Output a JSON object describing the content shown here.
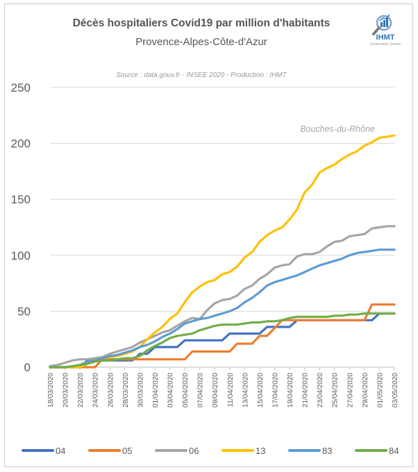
{
  "header": {
    "title": "Décès hospitaliers Covid19 par million d'habitants",
    "subtitle": "Provence-Alpes-Côte-d'Azur",
    "source": "Source : data.gouv.fr - INSEE 2020 - Production : IHMT",
    "logo_text": "IHMT",
    "logo_tagline": "Understand, Decide"
  },
  "colors": {
    "04": "#4472c4",
    "05": "#ed7d31",
    "06": "#a5a5a5",
    "13": "#ffc000",
    "83": "#5b9bd5",
    "84": "#70ad47",
    "grid": "#d9d9d9",
    "annotation": "#a5a5a5"
  },
  "chart_data": {
    "type": "line",
    "title": "Décès hospitaliers Covid19 par million d'habitants",
    "subtitle": "Provence-Alpes-Côte-d'Azur",
    "xlabel": "",
    "ylabel": "",
    "ylim": [
      0,
      250
    ],
    "yticks": [
      0,
      50,
      100,
      150,
      200,
      250
    ],
    "grid": true,
    "legend_position": "bottom",
    "annotation": {
      "text": "Bouches-du-Rhône",
      "series": "13"
    },
    "x": [
      "18/03/2020",
      "19/03/2020",
      "20/03/2020",
      "21/03/2020",
      "22/03/2020",
      "23/03/2020",
      "24/03/2020",
      "25/03/2020",
      "26/03/2020",
      "27/03/2020",
      "28/03/2020",
      "29/03/2020",
      "30/03/2020",
      "31/03/2020",
      "01/04/2020",
      "02/04/2020",
      "03/04/2020",
      "04/04/2020",
      "05/04/2020",
      "06/04/2020",
      "07/04/2020",
      "08/04/2020",
      "09/04/2020",
      "10/04/2020",
      "11/04/2020",
      "12/04/2020",
      "13/04/2020",
      "14/04/2020",
      "15/04/2020",
      "16/04/2020",
      "17/04/2020",
      "18/04/2020",
      "19/04/2020",
      "20/04/2020",
      "21/04/2020",
      "22/04/2020",
      "23/04/2020",
      "24/04/2020",
      "25/04/2020",
      "26/04/2020",
      "27/04/2020",
      "28/04/2020",
      "29/04/2020",
      "30/04/2020",
      "01/05/2020",
      "02/05/2020",
      "03/05/2020"
    ],
    "xtick_labels": [
      "18/03/2020",
      "20/03/2020",
      "22/03/2020",
      "24/03/2020",
      "26/03/2020",
      "28/03/2020",
      "30/03/2020",
      "01/04/2020",
      "03/04/2020",
      "05/04/2020",
      "07/04/2020",
      "09/04/2020",
      "11/04/2020",
      "13/04/2020",
      "15/04/2020",
      "17/04/2020",
      "19/04/2020",
      "21/04/2020",
      "23/04/2020",
      "25/04/2020",
      "27/04/2020",
      "29/04/2020",
      "01/05/2020",
      "03/05/2020"
    ],
    "series": [
      {
        "name": "04",
        "values": [
          0,
          0,
          0,
          0,
          0,
          6,
          6,
          6,
          6,
          6,
          6,
          6,
          12,
          12,
          18,
          18,
          18,
          18,
          24,
          24,
          24,
          24,
          24,
          24,
          30,
          30,
          30,
          30,
          30,
          36,
          36,
          36,
          36,
          42,
          42,
          42,
          42,
          42,
          42,
          42,
          42,
          42,
          42,
          42,
          48,
          48,
          48
        ]
      },
      {
        "name": "05",
        "values": [
          0,
          0,
          0,
          0,
          0,
          0,
          0,
          7,
          7,
          7,
          7,
          7,
          7,
          7,
          7,
          7,
          7,
          7,
          7,
          14,
          14,
          14,
          14,
          14,
          14,
          21,
          21,
          21,
          28,
          28,
          35,
          42,
          42,
          42,
          42,
          42,
          42,
          42,
          42,
          42,
          42,
          42,
          42,
          56,
          56,
          56,
          56
        ]
      },
      {
        "name": "06",
        "values": [
          1,
          2,
          4,
          6,
          7,
          7,
          8,
          9,
          12,
          14,
          16,
          18,
          22,
          25,
          28,
          31,
          33,
          37,
          41,
          44,
          43,
          51,
          57,
          60,
          61,
          64,
          70,
          73,
          79,
          83,
          89,
          91,
          92,
          99,
          101,
          101,
          103,
          108,
          112,
          113,
          117,
          118,
          119,
          124,
          125,
          126,
          126
        ]
      },
      {
        "name": "13",
        "values": [
          0,
          0,
          0,
          0,
          0,
          3,
          6,
          8,
          9,
          10,
          12,
          14,
          18,
          25,
          31,
          36,
          43,
          48,
          58,
          67,
          72,
          76,
          78,
          83,
          85,
          90,
          98,
          103,
          112,
          118,
          122,
          125,
          132,
          141,
          156,
          163,
          174,
          178,
          181,
          186,
          190,
          193,
          198,
          201,
          205,
          206,
          207
        ]
      },
      {
        "name": "83",
        "values": [
          0,
          0,
          0,
          1,
          2,
          5,
          6,
          8,
          10,
          11,
          13,
          15,
          18,
          20,
          23,
          27,
          30,
          34,
          39,
          41,
          43,
          44,
          46,
          48,
          50,
          53,
          58,
          62,
          67,
          73,
          76,
          78,
          80,
          82,
          85,
          88,
          91,
          93,
          95,
          97,
          100,
          102,
          103,
          104,
          105,
          105,
          105
        ]
      },
      {
        "name": "84",
        "values": [
          0,
          0,
          0,
          1,
          2,
          3,
          5,
          6,
          6,
          7,
          8,
          8,
          10,
          15,
          19,
          22,
          26,
          28,
          29,
          30,
          33,
          35,
          37,
          38,
          38,
          38,
          39,
          40,
          40,
          41,
          41,
          42,
          44,
          45,
          45,
          45,
          45,
          45,
          46,
          46,
          47,
          47,
          48,
          48,
          48,
          48,
          48
        ]
      }
    ]
  }
}
